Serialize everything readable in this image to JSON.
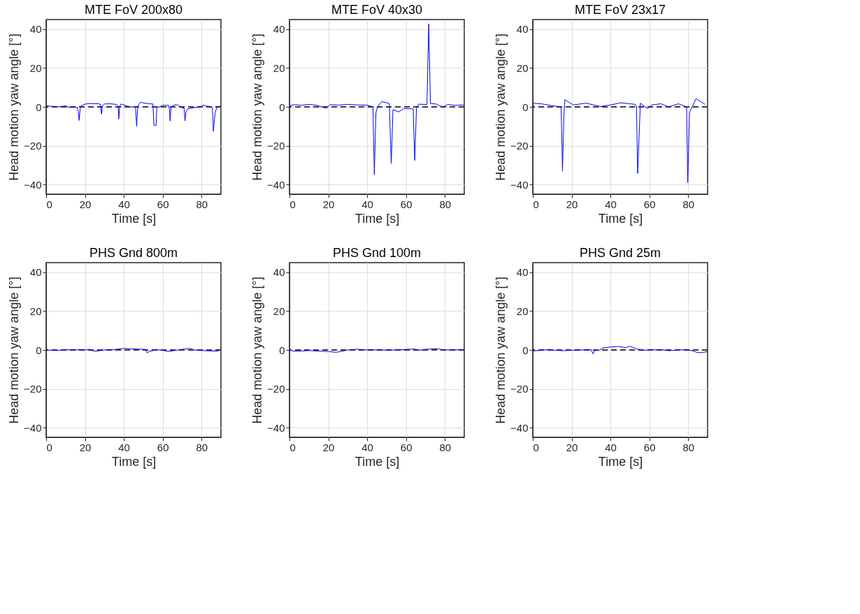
{
  "chart_data": [
    {
      "type": "line",
      "title": "MTE FoV 200x80",
      "xlabel": "Time [s]",
      "ylabel": "Head motion yaw angle [°]",
      "xlim": [
        0,
        90
      ],
      "ylim": [
        -45,
        45
      ],
      "xticks": [
        0,
        20,
        40,
        60,
        80
      ],
      "yticks": [
        -40,
        -20,
        0,
        20,
        40
      ],
      "grid": true,
      "x": [
        0,
        3,
        6,
        10,
        12,
        16,
        16.5,
        17,
        17.5,
        18,
        19,
        20,
        22,
        27,
        28,
        28.5,
        29,
        30,
        33,
        36,
        37,
        37.4,
        37.8,
        38.5,
        40,
        43,
        46,
        46.6,
        47.2,
        48.5,
        50,
        53,
        55,
        55.5,
        56.6,
        57,
        58,
        60,
        63,
        63.5,
        63.8,
        64.3,
        66,
        68,
        69,
        70,
        71,
        71.5,
        72,
        73,
        76,
        78,
        80,
        81,
        82,
        84,
        85.6,
        86.1,
        87,
        88,
        89.5
      ],
      "series": [
        {
          "color": "#0000ff",
          "values": [
            0.5,
            0.3,
            0,
            0.5,
            -0.3,
            -0.2,
            -2,
            -7,
            -1,
            0.5,
            1,
            1.4,
            1.7,
            1.6,
            1.2,
            -3.8,
            0.5,
            1.5,
            1.6,
            1.3,
            0.5,
            -6.2,
            0,
            1.5,
            1,
            0,
            0,
            -10,
            0.5,
            2.4,
            2,
            1.6,
            1.5,
            -9.5,
            -9.5,
            0,
            -0.2,
            0.8,
            0.8,
            -1,
            -7.3,
            0,
            1,
            1,
            0,
            -0.6,
            -0.5,
            -7.2,
            -2.5,
            -1,
            -0.4,
            -0.2,
            0.3,
            1,
            0.5,
            0.2,
            -0.4,
            -12.6,
            -3,
            0,
            0.3
          ]
        }
      ],
      "ref_lines": [
        {
          "axis": "y",
          "value": 0,
          "color": "#000000",
          "line_style": "dashed"
        }
      ]
    },
    {
      "type": "line",
      "title": "MTE FoV 40x30",
      "xlabel": "Time [s]",
      "ylabel": "Head motion yaw angle [°]",
      "xlim": [
        0,
        90
      ],
      "ylim": [
        -45,
        45
      ],
      "xticks": [
        0,
        20,
        40,
        60,
        80
      ],
      "yticks": [
        -40,
        -20,
        0,
        20,
        40
      ],
      "grid": true,
      "x": [
        0,
        3,
        6,
        10,
        14,
        18.9,
        21,
        25,
        30,
        35,
        40,
        43,
        43.7,
        44.5,
        45.3,
        47.6,
        51.4,
        52.4,
        53.3,
        56.1,
        59,
        63.7,
        64.5,
        65.4,
        66.5,
        70.8,
        71.7,
        72.6,
        75.5,
        77.4,
        79.2,
        81.6,
        84.9,
        89.6
      ],
      "series": [
        {
          "color": "#0000ff",
          "values": [
            0.6,
            1.2,
            0.8,
            1.3,
            0.8,
            -0.7,
            1.2,
            0.9,
            1.3,
            1,
            0.9,
            0,
            -35,
            -3.3,
            0,
            2.8,
            1.7,
            -29.2,
            -1.4,
            -2.6,
            -0.9,
            -1,
            -27.6,
            -0.5,
            1.4,
            1.2,
            42.8,
            1.7,
            1.5,
            0.5,
            0,
            1.3,
            0.8,
            1
          ]
        }
      ],
      "ref_lines": [
        {
          "axis": "y",
          "value": 0,
          "color": "#000000",
          "line_style": "dashed"
        }
      ]
    },
    {
      "type": "line",
      "title": "MTE FoV 23x17",
      "xlabel": "Time [s]",
      "ylabel": "Head motion yaw angle [°]",
      "xlim": [
        0,
        90
      ],
      "ylim": [
        -45,
        45
      ],
      "xticks": [
        0,
        20,
        40,
        60,
        80
      ],
      "yticks": [
        -40,
        -20,
        0,
        20,
        40
      ],
      "grid": true,
      "x": [
        0,
        5,
        10,
        14.6,
        15.3,
        16,
        16.5,
        20.8,
        27.4,
        34.9,
        40,
        45.3,
        52.8,
        53.4,
        54,
        55.4,
        59,
        61.3,
        66,
        69.8,
        75,
        79.2,
        79.8,
        80.7,
        82.1,
        84,
        88.7
      ],
      "series": [
        {
          "color": "#0000ff",
          "values": [
            1.9,
            1.5,
            0.6,
            0,
            -33.2,
            -5,
            3.7,
            1,
            1.9,
            0.2,
            1,
            2.1,
            1.3,
            0,
            -34.3,
            1.9,
            -0.9,
            1,
            1.6,
            0,
            1.6,
            0,
            -39,
            -2.8,
            0,
            4.2,
            1.3
          ]
        }
      ],
      "ref_lines": [
        {
          "axis": "y",
          "value": 0,
          "color": "#000000",
          "line_style": "dashed"
        }
      ]
    },
    {
      "type": "line",
      "title": "PHS Gnd 800m",
      "xlabel": "Time [s]",
      "ylabel": "Head motion yaw angle [°]",
      "xlim": [
        0,
        90
      ],
      "ylim": [
        -45,
        45
      ],
      "xticks": [
        0,
        20,
        40,
        60,
        80
      ],
      "yticks": [
        -40,
        -20,
        0,
        20,
        40
      ],
      "grid": true,
      "x": [
        0,
        5,
        12,
        20,
        22,
        25,
        28,
        30,
        36,
        40,
        46,
        51,
        52,
        53,
        57,
        60,
        63,
        66,
        70,
        74,
        76,
        80,
        85,
        88,
        90
      ],
      "series": [
        {
          "color": "#0000ff",
          "values": [
            0,
            -0.3,
            0.2,
            0,
            0.3,
            -0.7,
            -0.3,
            0,
            0.3,
            0.8,
            0.5,
            0.3,
            -1.5,
            -0.8,
            0.2,
            -0.2,
            -0.8,
            -0.3,
            0.3,
            0.8,
            0,
            -0.3,
            -0.5,
            -0.6,
            0
          ]
        }
      ],
      "ref_lines": [
        {
          "axis": "y",
          "value": 0,
          "color": "#000000",
          "line_style": "dashed"
        }
      ]
    },
    {
      "type": "line",
      "title": "PHS Gnd 100m",
      "xlabel": "Time [s]",
      "ylabel": "Head motion yaw angle [°]",
      "xlim": [
        0,
        90
      ],
      "ylim": [
        -45,
        45
      ],
      "xticks": [
        0,
        20,
        40,
        60,
        80
      ],
      "yticks": [
        -40,
        -20,
        0,
        20,
        40
      ],
      "grid": true,
      "x": [
        0,
        2,
        5,
        10,
        15,
        20,
        24,
        27,
        30,
        35,
        40,
        45,
        50,
        55,
        60,
        64,
        67,
        70,
        74,
        77,
        80,
        85,
        90
      ],
      "series": [
        {
          "color": "#0000ff",
          "values": [
            0.2,
            -0.7,
            -0.6,
            -0.3,
            -0.6,
            -0.8,
            -1.2,
            -0.7,
            0,
            0.4,
            0,
            0.1,
            -0.1,
            0,
            0.3,
            0.5,
            -0.1,
            0.3,
            0.6,
            0.5,
            0,
            0.1,
            0.1
          ]
        }
      ],
      "ref_lines": [
        {
          "axis": "y",
          "value": 0,
          "color": "#000000",
          "line_style": "dashed"
        }
      ]
    },
    {
      "type": "line",
      "title": "PHS Gnd 25m",
      "xlabel": "Time [s]",
      "ylabel": "Head motion yaw angle [°]",
      "xlim": [
        0,
        90
      ],
      "ylim": [
        -45,
        45
      ],
      "xticks": [
        0,
        20,
        40,
        60,
        80
      ],
      "yticks": [
        -40,
        -20,
        0,
        20,
        40
      ],
      "grid": true,
      "x": [
        0,
        3,
        8,
        12,
        16,
        22,
        28,
        30,
        31,
        32,
        34,
        36,
        40,
        44,
        48,
        50,
        53,
        56,
        60,
        66,
        70,
        75,
        80,
        83,
        85,
        88,
        90
      ],
      "series": [
        {
          "color": "#0000ff",
          "values": [
            -0.5,
            -0.3,
            0.2,
            -0.2,
            -0.4,
            0,
            0,
            0.2,
            -2,
            0,
            -0.3,
            1,
            1.5,
            1.8,
            1.2,
            1.9,
            0.8,
            -0.2,
            0,
            0.2,
            -0.4,
            0,
            0.1,
            -0.7,
            -1.4,
            -1.2,
            -0.8
          ]
        }
      ],
      "ref_lines": [
        {
          "axis": "y",
          "value": 0,
          "color": "#000000",
          "line_style": "dashed"
        }
      ]
    }
  ]
}
